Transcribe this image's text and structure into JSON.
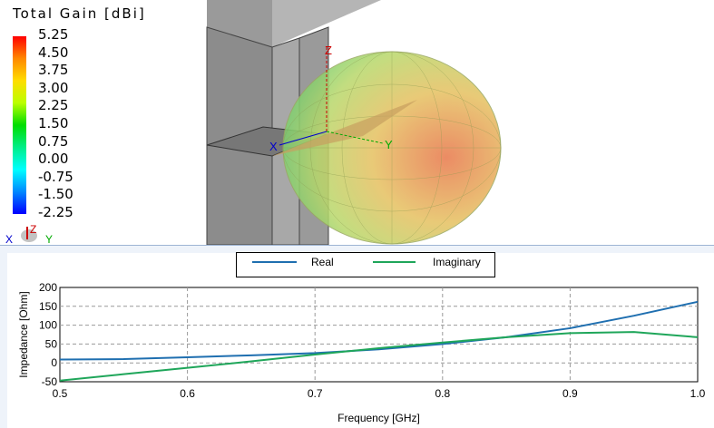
{
  "colorbar": {
    "title": "Total Gain [dBi]",
    "labels": [
      "5.25",
      "4.50",
      "3.75",
      "3.00",
      "2.25",
      "1.50",
      "0.75",
      "0.00",
      "-0.75",
      "-1.50",
      "-2.25"
    ]
  },
  "axes3d": {
    "x": "X",
    "y": "Y",
    "z": "Z"
  },
  "chart_data": {
    "type": "line",
    "xlabel": "Frequency [GHz]",
    "ylabel": "Impedance [Ohm]",
    "xlim": [
      0.5,
      1.0
    ],
    "ylim": [
      -50,
      200
    ],
    "xticks": [
      "0.5",
      "0.6",
      "0.7",
      "0.8",
      "0.9",
      "1.0"
    ],
    "yticks": [
      "200",
      "150",
      "100",
      "50",
      "0",
      "-50"
    ],
    "grid": true,
    "legend": "top-center",
    "x": [
      0.5,
      0.55,
      0.6,
      0.65,
      0.7,
      0.75,
      0.8,
      0.85,
      0.9,
      0.95,
      1.0
    ],
    "series": [
      {
        "name": "Real",
        "color": "#1f6fb0",
        "values": [
          9,
          10,
          15,
          20,
          26,
          36,
          50,
          68,
          92,
          125,
          162
        ]
      },
      {
        "name": "Imaginary",
        "color": "#1fa65a",
        "values": [
          -47,
          -30,
          -13,
          4,
          22,
          39,
          54,
          68,
          79,
          82,
          68
        ]
      }
    ]
  }
}
